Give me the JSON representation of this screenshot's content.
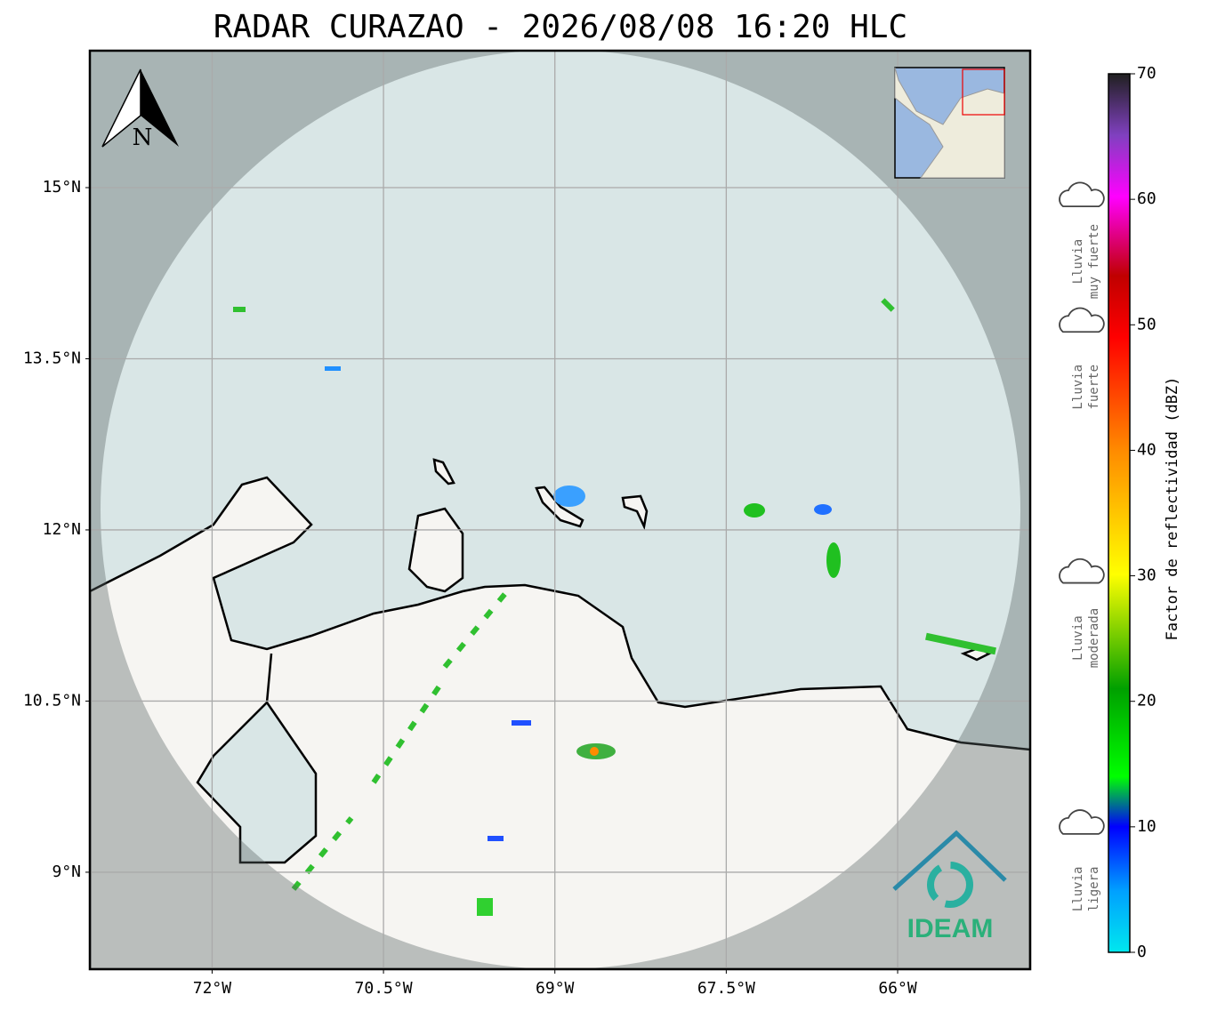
{
  "title": "RADAR CURAZAO - 2026/08/08 16:20 HLC",
  "map": {
    "xlim": [
      -73.07,
      -64.84
    ],
    "ylim": [
      8.15,
      16.2
    ],
    "xticks": [
      {
        "value": -72,
        "label": "72°W"
      },
      {
        "value": -70.5,
        "label": "70.5°W"
      },
      {
        "value": -69,
        "label": "69°W"
      },
      {
        "value": -67.5,
        "label": "67.5°W"
      },
      {
        "value": -66,
        "label": "66°W"
      }
    ],
    "yticks": [
      {
        "value": 15,
        "label": "15°N"
      },
      {
        "value": 13.5,
        "label": "13.5°N"
      },
      {
        "value": 12,
        "label": "12°N"
      },
      {
        "value": 10.5,
        "label": "10.5°N"
      },
      {
        "value": 9,
        "label": "9°N"
      }
    ],
    "north": "N",
    "logo": "IDEAM"
  },
  "colorbar": {
    "label": "Factor de reflectividad (dBZ)",
    "lim": [
      0,
      70
    ],
    "ticks": [
      0,
      10,
      20,
      30,
      40,
      50,
      60,
      70
    ]
  },
  "legend": [
    {
      "lines": [
        "Lluvia",
        "muy fuerte"
      ],
      "value": 60
    },
    {
      "lines": [
        "Lluvia",
        "fuerte"
      ],
      "value": 50
    },
    {
      "lines": [
        "Lluvia",
        "moderada"
      ],
      "value": 30
    },
    {
      "lines": [
        "Lluvia",
        "ligera"
      ],
      "value": 10
    }
  ]
}
